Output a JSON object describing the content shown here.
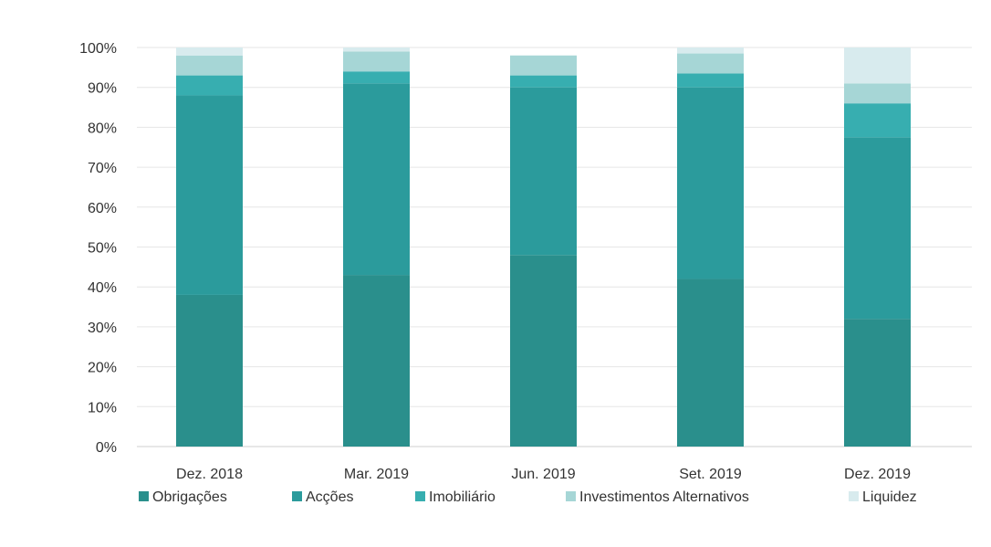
{
  "chart_data": {
    "type": "bar",
    "stacked": true,
    "categories": [
      "Dez. 2018",
      "Mar. 2019",
      "Jun. 2019",
      "Set. 2019",
      "Dez. 2019"
    ],
    "series": [
      {
        "name": "Obrigações",
        "color": "#2a8f8c",
        "values": [
          38,
          43,
          48,
          42,
          32
        ]
      },
      {
        "name": "Acções",
        "color": "#2b9b9c",
        "values": [
          50,
          48,
          42,
          48,
          45.5
        ]
      },
      {
        "name": "Imobiliário",
        "color": "#37aeb0",
        "values": [
          5,
          3,
          3,
          3.5,
          8.5
        ]
      },
      {
        "name": "Investimentos Alternativos",
        "color": "#a6d6d6",
        "values": [
          5,
          5,
          5,
          5,
          5
        ]
      },
      {
        "name": "Liquidez",
        "color": "#d8ebee",
        "values": [
          2,
          1,
          0,
          1.5,
          9
        ]
      }
    ],
    "yticks": [
      "0%",
      "10%",
      "20%",
      "30%",
      "40%",
      "50%",
      "60%",
      "70%",
      "80%",
      "90%",
      "100%"
    ],
    "ylim": [
      0,
      100
    ],
    "grid": true,
    "legend_position": "bottom"
  }
}
